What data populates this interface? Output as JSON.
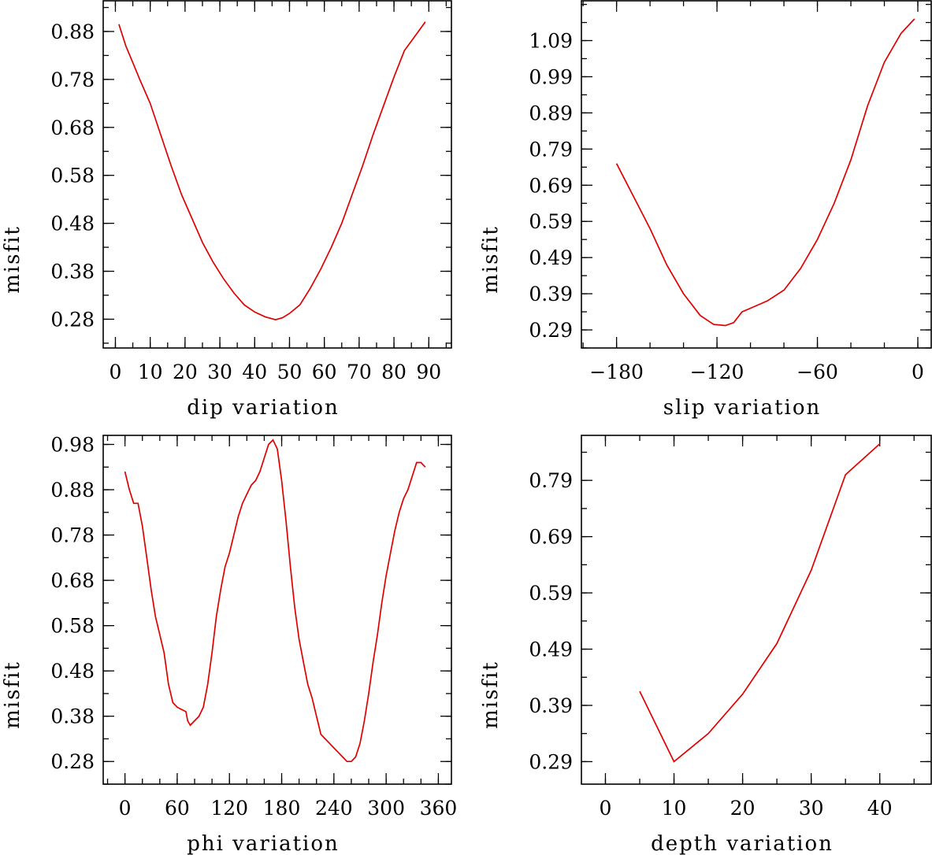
{
  "chart_data": [
    {
      "type": "line",
      "xlabel": "dip variation",
      "ylabel": "misfit",
      "xlim": [
        -3.5,
        96.5
      ],
      "ylim": [
        0.22,
        0.944
      ],
      "x_ticks": [
        0,
        10,
        20,
        30,
        40,
        50,
        60,
        70,
        80,
        90
      ],
      "x_tick_labels": [
        "0",
        "10",
        "20",
        "30",
        "40",
        "50",
        "60",
        "70",
        "80",
        "90"
      ],
      "y_ticks": [
        0.28,
        0.38,
        0.48,
        0.58,
        0.68,
        0.78,
        0.88
      ],
      "y_tick_labels": [
        "0.28",
        "0.38",
        "0.48",
        "0.58",
        "0.68",
        "0.78",
        "0.88"
      ],
      "series": [
        {
          "color": "#e00000",
          "x": [
            1,
            3,
            5,
            7,
            10,
            13,
            16,
            19,
            22,
            25,
            28,
            31,
            34,
            37,
            40,
            43,
            46,
            48,
            50,
            53,
            56,
            59,
            62,
            65,
            68,
            71,
            74,
            77,
            80,
            83,
            86,
            89
          ],
          "y": [
            0.895,
            0.85,
            0.815,
            0.78,
            0.73,
            0.665,
            0.6,
            0.54,
            0.49,
            0.44,
            0.4,
            0.365,
            0.335,
            0.31,
            0.295,
            0.285,
            0.279,
            0.283,
            0.292,
            0.31,
            0.345,
            0.385,
            0.43,
            0.48,
            0.54,
            0.6,
            0.665,
            0.725,
            0.785,
            0.84,
            0.87,
            0.9
          ]
        }
      ]
    },
    {
      "type": "line",
      "xlabel": "slip variation",
      "ylabel": "misfit",
      "xlim": [
        -201,
        8
      ],
      "ylim": [
        0.24,
        1.2
      ],
      "x_ticks": [
        -180,
        -120,
        -60,
        0
      ],
      "x_tick_labels": [
        "−180",
        "−120",
        "−60",
        "0"
      ],
      "y_ticks": [
        0.29,
        0.39,
        0.49,
        0.59,
        0.69,
        0.79,
        0.89,
        0.99,
        1.09
      ],
      "y_tick_labels": [
        "0.29",
        "0.39",
        "0.49",
        "0.59",
        "0.69",
        "0.79",
        "0.89",
        "0.99",
        "1.09"
      ],
      "series": [
        {
          "color": "#e00000",
          "x": [
            -180,
            -170,
            -160,
            -150,
            -140,
            -130,
            -122,
            -115,
            -110,
            -105,
            -100,
            -90,
            -80,
            -70,
            -60,
            -50,
            -40,
            -30,
            -20,
            -10,
            -2
          ],
          "y": [
            0.75,
            0.66,
            0.57,
            0.47,
            0.39,
            0.33,
            0.305,
            0.302,
            0.31,
            0.34,
            0.35,
            0.37,
            0.4,
            0.46,
            0.54,
            0.64,
            0.76,
            0.91,
            1.03,
            1.11,
            1.15
          ]
        }
      ]
    },
    {
      "type": "line",
      "xlabel": "phi variation",
      "ylabel": "misfit",
      "xlim": [
        -25,
        375
      ],
      "ylim": [
        0.23,
        1.0
      ],
      "x_ticks": [
        0,
        60,
        120,
        180,
        240,
        300,
        360
      ],
      "x_tick_labels": [
        "0",
        "60",
        "120",
        "180",
        "240",
        "300",
        "360"
      ],
      "y_ticks": [
        0.28,
        0.38,
        0.48,
        0.58,
        0.68,
        0.78,
        0.88,
        0.98
      ],
      "y_tick_labels": [
        "0.28",
        "0.38",
        "0.48",
        "0.58",
        "0.68",
        "0.78",
        "0.88",
        "0.98"
      ],
      "series": [
        {
          "color": "#e00000",
          "x": [
            0,
            5,
            10,
            15,
            20,
            25,
            30,
            35,
            40,
            45,
            50,
            55,
            60,
            65,
            70,
            72,
            75,
            80,
            85,
            90,
            95,
            100,
            105,
            110,
            115,
            120,
            125,
            130,
            135,
            140,
            145,
            150,
            155,
            160,
            165,
            170,
            175,
            180,
            185,
            190,
            195,
            200,
            205,
            210,
            215,
            220,
            225,
            230,
            235,
            240,
            245,
            250,
            255,
            260,
            265,
            270,
            275,
            280,
            285,
            290,
            295,
            300,
            305,
            310,
            315,
            320,
            325,
            330,
            335,
            340,
            345
          ],
          "y": [
            0.92,
            0.88,
            0.85,
            0.85,
            0.8,
            0.73,
            0.66,
            0.6,
            0.56,
            0.52,
            0.45,
            0.41,
            0.4,
            0.395,
            0.39,
            0.37,
            0.36,
            0.37,
            0.38,
            0.4,
            0.45,
            0.52,
            0.6,
            0.66,
            0.71,
            0.74,
            0.78,
            0.82,
            0.85,
            0.87,
            0.89,
            0.9,
            0.92,
            0.95,
            0.98,
            0.99,
            0.97,
            0.9,
            0.81,
            0.71,
            0.62,
            0.55,
            0.5,
            0.45,
            0.42,
            0.38,
            0.34,
            0.33,
            0.32,
            0.31,
            0.3,
            0.29,
            0.28,
            0.28,
            0.29,
            0.32,
            0.37,
            0.43,
            0.5,
            0.56,
            0.63,
            0.69,
            0.74,
            0.79,
            0.83,
            0.86,
            0.88,
            0.91,
            0.94,
            0.94,
            0.93
          ]
        }
      ]
    },
    {
      "type": "line",
      "xlabel": "depth variation",
      "ylabel": "misfit",
      "xlim": [
        -3.5,
        47.5
      ],
      "ylim": [
        0.25,
        0.87
      ],
      "x_ticks": [
        0,
        10,
        20,
        30,
        40
      ],
      "x_tick_labels": [
        "0",
        "10",
        "20",
        "30",
        "40"
      ],
      "y_ticks": [
        0.29,
        0.39,
        0.49,
        0.59,
        0.69,
        0.79
      ],
      "y_tick_labels": [
        "0.29",
        "0.39",
        "0.49",
        "0.59",
        "0.69",
        "0.79"
      ],
      "series": [
        {
          "color": "#e00000",
          "x": [
            5,
            10,
            15,
            20,
            25,
            30,
            35,
            40
          ],
          "y": [
            0.415,
            0.29,
            0.34,
            0.41,
            0.5,
            0.63,
            0.8,
            0.855
          ]
        }
      ]
    }
  ]
}
